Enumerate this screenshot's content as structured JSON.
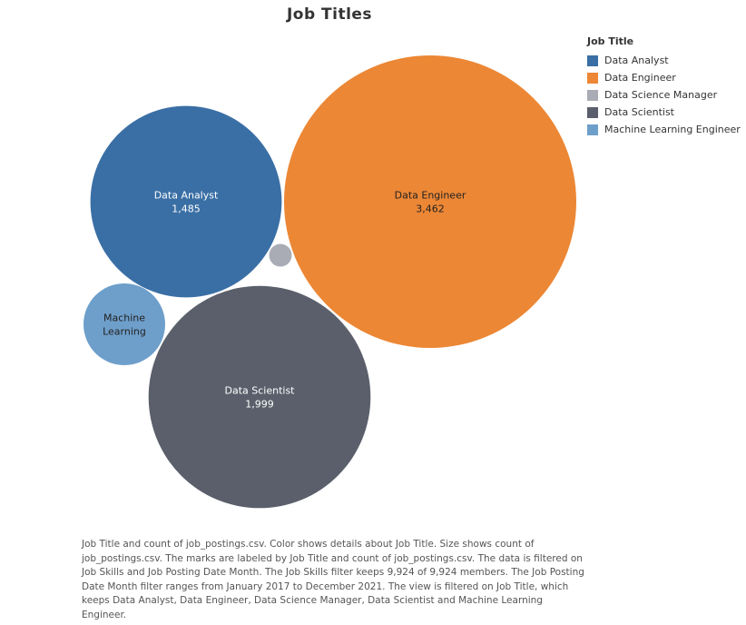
{
  "chart_data": {
    "type": "packed-bubble",
    "title": "Job Titles",
    "legend": {
      "title": "Job Title",
      "placement": "top-right",
      "items": [
        {
          "label": "Data Analyst",
          "color": "#3a6fa5"
        },
        {
          "label": "Data Engineer",
          "color": "#ec8735"
        },
        {
          "label": "Data Science Manager",
          "color": "#a9acb5"
        },
        {
          "label": "Data Scientist",
          "color": "#5a5f6b"
        },
        {
          "label": "Machine Learning Engineer",
          "color": "#6e9fcb"
        }
      ]
    },
    "bubbles": [
      {
        "category": "Data Engineer",
        "label_lines": [
          "Data Engineer",
          "3,462"
        ],
        "value": 3462,
        "color": "#ec8735",
        "text_color": "#222222"
      },
      {
        "category": "Data Scientist",
        "label_lines": [
          "Data Scientist",
          "1,999"
        ],
        "value": 1999,
        "color": "#5a5f6b",
        "text_color": "#ffffff"
      },
      {
        "category": "Data Analyst",
        "label_lines": [
          "Data Analyst",
          "1,485"
        ],
        "value": 1485,
        "color": "#3a6fa5",
        "text_color": "#ffffff"
      },
      {
        "category": "Machine Learning Engineer",
        "label_lines": [
          "Machine",
          "Learning"
        ],
        "value": 270,
        "color": "#6e9fcb",
        "text_color": "#222222"
      },
      {
        "category": "Data Science Manager",
        "label_lines": [],
        "value": 21,
        "color": "#a9acb5",
        "text_color": "#222222"
      }
    ]
  },
  "caption": "Job Title and count of job_postings.csv.  Color shows details about Job Title.  Size shows count of job_postings.csv.  The marks are labeled by Job Title and count of job_postings.csv. The data is filtered on Job Skills and Job Posting Date Month. The Job Skills filter keeps 9,924 of 9,924 members. The Job Posting Date Month filter ranges from January 2017 to December 2021. The view is filtered on Job Title, which keeps Data Analyst, Data Engineer, Data Science Manager, Data Scientist and Machine Learning Engineer."
}
